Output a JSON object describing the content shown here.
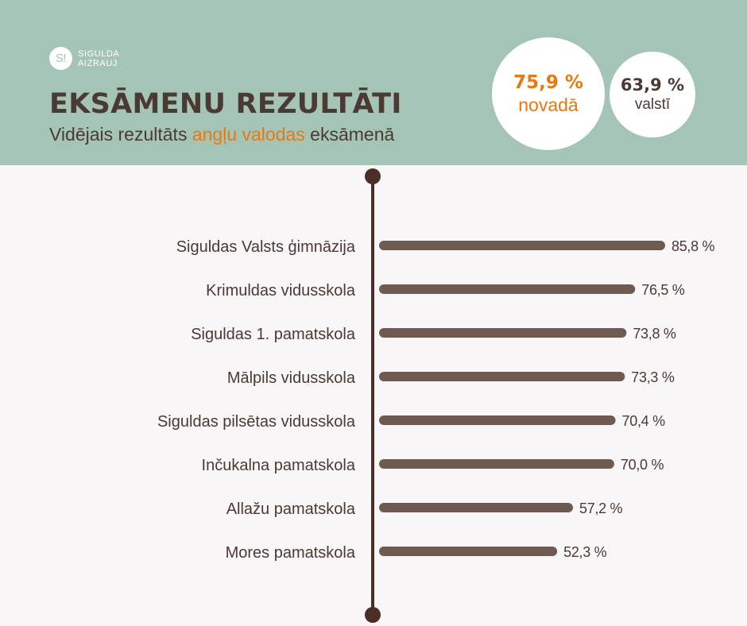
{
  "brand": {
    "logo_mark": "S!",
    "line1": "SIGULDA",
    "line2": "AIZRAUJ"
  },
  "title": "EKSĀMENU REZULTĀTI",
  "subtitle": {
    "before": "Vidējais rezultāts ",
    "highlight": "angļu valodas",
    "after": " eksāmenā"
  },
  "stats": {
    "region": {
      "value": "75,9 %",
      "label": "novadā"
    },
    "country": {
      "value": "63,9 %",
      "label": "valstī"
    }
  },
  "colors": {
    "header_bg": "#a4c5b6",
    "bar": "#6e5a50",
    "axis": "#4a2e27",
    "accent": "#e8780f",
    "text": "#4a3a33"
  },
  "chart_data": {
    "type": "bar",
    "orientation": "horizontal",
    "categories": [
      "Siguldas Valsts ģimnāzija",
      "Krimuldas vidusskola",
      "Siguldas 1. pamatskola",
      "Mālpils vidusskola",
      "Siguldas pilsētas vidusskola",
      "Inčukalna pamatskola",
      "Allažu pamatskola",
      "Mores pamatskola"
    ],
    "values": [
      85.8,
      76.5,
      73.8,
      73.3,
      70.4,
      70.0,
      57.2,
      52.3
    ],
    "value_labels": [
      "85,8 %",
      "76,5 %",
      "73,8 %",
      "73,3 %",
      "70,4 %",
      "70,0 %",
      "57,2 %",
      "52,3 %"
    ],
    "unit": "%",
    "xlim": [
      0,
      100
    ],
    "grid": false,
    "legend": "none"
  }
}
